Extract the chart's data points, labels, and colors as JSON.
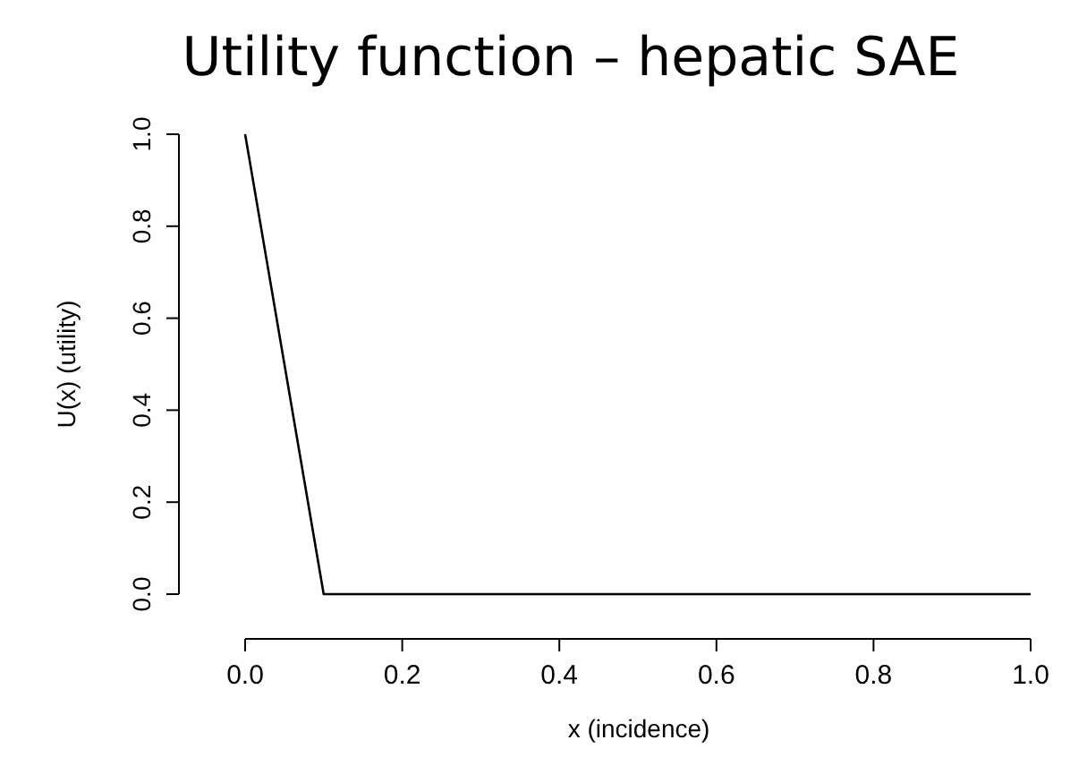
{
  "chart_data": {
    "type": "line",
    "title": "Utility function – hepatic SAE",
    "xlabel": "x (incidence)",
    "ylabel": "U(x) (utility)",
    "x": [
      0,
      0.1,
      1
    ],
    "series": [
      {
        "color": "#000000",
        "values": [
          1,
          0,
          0
        ]
      }
    ],
    "xlim": [
      0,
      1
    ],
    "ylim": [
      0,
      1
    ],
    "xticks": [
      {
        "value": 0,
        "label": "0.0"
      },
      {
        "value": 0.2,
        "label": "0.2"
      },
      {
        "value": 0.4,
        "label": "0.4"
      },
      {
        "value": 0.6,
        "label": "0.6"
      },
      {
        "value": 0.8,
        "label": "0.8"
      },
      {
        "value": 1,
        "label": "1.0"
      }
    ],
    "yticks": [
      {
        "value": 0,
        "label": "0.0"
      },
      {
        "value": 0.2,
        "label": "0.2"
      },
      {
        "value": 0.4,
        "label": "0.4"
      },
      {
        "value": 0.6,
        "label": "0.6"
      },
      {
        "value": 0.8,
        "label": "0.8"
      },
      {
        "value": 1,
        "label": "1.0"
      }
    ],
    "grid": false,
    "marker": "none",
    "line_style": "solid"
  }
}
